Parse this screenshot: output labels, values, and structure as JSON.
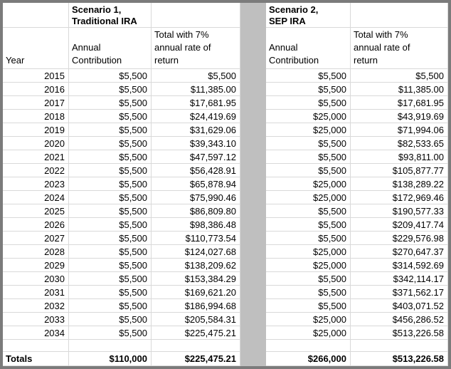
{
  "frame": {
    "border_color": "#7b7b7b",
    "gridline_color": "#d9d9d9",
    "divider_color": "#bfbfbf",
    "background_color": "#ffffff"
  },
  "table": {
    "scenario1_title": "Scenario 1,\nTraditional IRA",
    "scenario2_title": "Scenario 2,\nSEP IRA",
    "year_header": "Year",
    "s1_contribution_header": "Annual\nContribution",
    "s1_total_header": "Total with 7%\nannual rate of\nreturn",
    "s2_contribution_header": "Annual\nContribution",
    "s2_total_header": "Total with 7%\nannual rate of\nreturn",
    "rows": [
      {
        "year": "2015",
        "s1_contribution": "$5,500",
        "s1_total": "$5,500",
        "s2_contribution": "$5,500",
        "s2_total": "$5,500"
      },
      {
        "year": "2016",
        "s1_contribution": "$5,500",
        "s1_total": "$11,385.00",
        "s2_contribution": "$5,500",
        "s2_total": "$11,385.00"
      },
      {
        "year": "2017",
        "s1_contribution": "$5,500",
        "s1_total": "$17,681.95",
        "s2_contribution": "$5,500",
        "s2_total": "$17,681.95"
      },
      {
        "year": "2018",
        "s1_contribution": "$5,500",
        "s1_total": "$24,419.69",
        "s2_contribution": "$25,000",
        "s2_total": "$43,919.69"
      },
      {
        "year": "2019",
        "s1_contribution": "$5,500",
        "s1_total": "$31,629.06",
        "s2_contribution": "$25,000",
        "s2_total": "$71,994.06"
      },
      {
        "year": "2020",
        "s1_contribution": "$5,500",
        "s1_total": "$39,343.10",
        "s2_contribution": "$5,500",
        "s2_total": "$82,533.65"
      },
      {
        "year": "2021",
        "s1_contribution": "$5,500",
        "s1_total": "$47,597.12",
        "s2_contribution": "$5,500",
        "s2_total": "$93,811.00"
      },
      {
        "year": "2022",
        "s1_contribution": "$5,500",
        "s1_total": "$56,428.91",
        "s2_contribution": "$5,500",
        "s2_total": "$105,877.77"
      },
      {
        "year": "2023",
        "s1_contribution": "$5,500",
        "s1_total": "$65,878.94",
        "s2_contribution": "$25,000",
        "s2_total": "$138,289.22"
      },
      {
        "year": "2024",
        "s1_contribution": "$5,500",
        "s1_total": "$75,990.46",
        "s2_contribution": "$25,000",
        "s2_total": "$172,969.46"
      },
      {
        "year": "2025",
        "s1_contribution": "$5,500",
        "s1_total": "$86,809.80",
        "s2_contribution": "$5,500",
        "s2_total": "$190,577.33"
      },
      {
        "year": "2026",
        "s1_contribution": "$5,500",
        "s1_total": "$98,386.48",
        "s2_contribution": "$5,500",
        "s2_total": "$209,417.74"
      },
      {
        "year": "2027",
        "s1_contribution": "$5,500",
        "s1_total": "$110,773.54",
        "s2_contribution": "$5,500",
        "s2_total": "$229,576.98"
      },
      {
        "year": "2028",
        "s1_contribution": "$5,500",
        "s1_total": "$124,027.68",
        "s2_contribution": "$25,000",
        "s2_total": "$270,647.37"
      },
      {
        "year": "2029",
        "s1_contribution": "$5,500",
        "s1_total": "$138,209.62",
        "s2_contribution": "$25,000",
        "s2_total": "$314,592.69"
      },
      {
        "year": "2030",
        "s1_contribution": "$5,500",
        "s1_total": "$153,384.29",
        "s2_contribution": "$5,500",
        "s2_total": "$342,114.17"
      },
      {
        "year": "2031",
        "s1_contribution": "$5,500",
        "s1_total": "$169,621.20",
        "s2_contribution": "$5,500",
        "s2_total": "$371,562.17"
      },
      {
        "year": "2032",
        "s1_contribution": "$5,500",
        "s1_total": "$186,994.68",
        "s2_contribution": "$5,500",
        "s2_total": "$403,071.52"
      },
      {
        "year": "2033",
        "s1_contribution": "$5,500",
        "s1_total": "$205,584.31",
        "s2_contribution": "$25,000",
        "s2_total": "$456,286.52"
      },
      {
        "year": "2034",
        "s1_contribution": "$5,500",
        "s1_total": "$225,475.21",
        "s2_contribution": "$25,000",
        "s2_total": "$513,226.58"
      }
    ],
    "totals": {
      "label": "Totals",
      "s1_contribution": "$110,000",
      "s1_total": "$225,475.21",
      "s2_contribution": "$266,000",
      "s2_total": "$513,226.58"
    }
  }
}
